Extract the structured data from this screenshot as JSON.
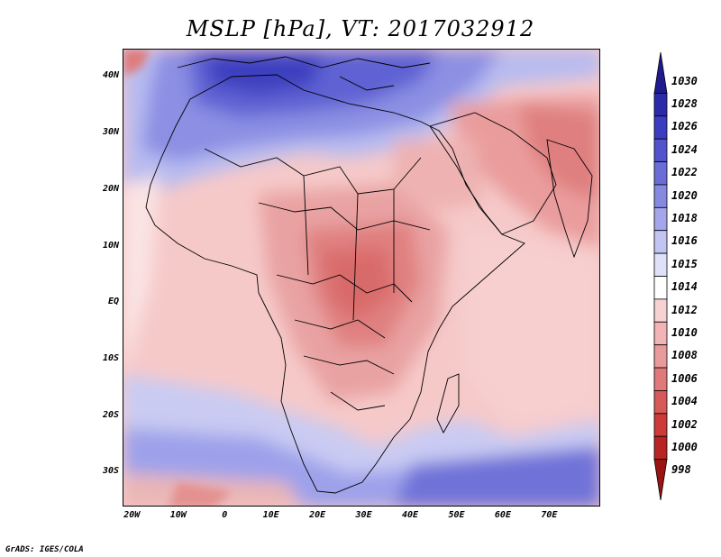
{
  "title": "MSLP [hPa], VT: 2017032912",
  "footer": "GrADS: IGES/COLA",
  "map_axes": {
    "lon_range": [
      -22,
      81
    ],
    "lat_range": [
      -36,
      45
    ],
    "lat_ticks": [
      {
        "value": 40,
        "label": "40N"
      },
      {
        "value": 30,
        "label": "30N"
      },
      {
        "value": 20,
        "label": "20N"
      },
      {
        "value": 10,
        "label": "10N"
      },
      {
        "value": 0,
        "label": "EQ"
      },
      {
        "value": -10,
        "label": "10S"
      },
      {
        "value": -20,
        "label": "20S"
      },
      {
        "value": -30,
        "label": "30S"
      }
    ],
    "lon_ticks": [
      {
        "value": -20,
        "label": "20W"
      },
      {
        "value": -10,
        "label": "10W"
      },
      {
        "value": 0,
        "label": "0"
      },
      {
        "value": 10,
        "label": "10E"
      },
      {
        "value": 20,
        "label": "20E"
      },
      {
        "value": 30,
        "label": "30E"
      },
      {
        "value": 40,
        "label": "40E"
      },
      {
        "value": 50,
        "label": "50E"
      },
      {
        "value": 60,
        "label": "60E"
      },
      {
        "value": 70,
        "label": "70E"
      }
    ]
  },
  "colorbar": {
    "levels": [
      "1030",
      "1028",
      "1026",
      "1024",
      "1022",
      "1020",
      "1018",
      "1016",
      "1015",
      "1014",
      "1012",
      "1010",
      "1008",
      "1006",
      "1004",
      "1002",
      "1000",
      "998"
    ],
    "colors": [
      "#201a8e",
      "#2b2aa8",
      "#3c3cc0",
      "#5253cc",
      "#6a6dd6",
      "#8689e0",
      "#a3a6ea",
      "#c2c4f2",
      "#dfe1f8",
      "#ffffff",
      "#f7d2d2",
      "#f2b4b4",
      "#e99a9a",
      "#e07a7a",
      "#d65a5a",
      "#cc3a3a",
      "#b82424",
      "#9a1414"
    ]
  }
}
